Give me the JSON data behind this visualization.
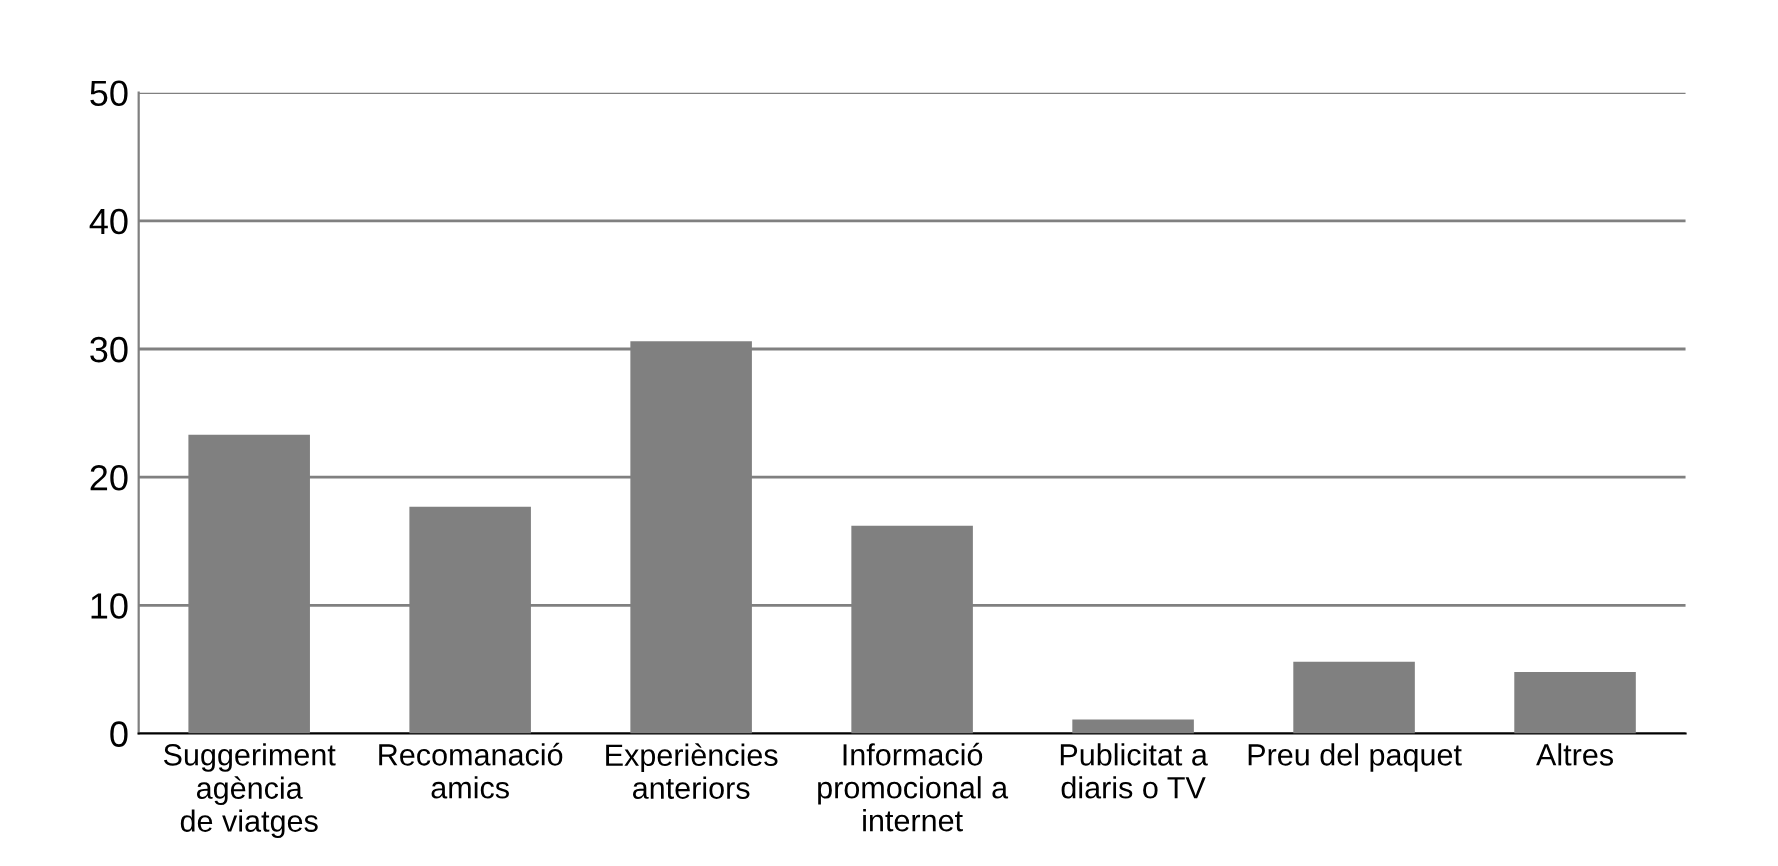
{
  "chart_data": {
    "type": "bar",
    "categories": [
      "Suggeriment\nagència\nde viatges",
      "Recomanació\namics",
      "Experiències\nanteriors",
      "Informació\npromocional a\ninternet",
      "Publicitat a\ndiaris o TV",
      "Preu del paquet",
      "Altres"
    ],
    "values": [
      23.3,
      17.7,
      30.6,
      16.2,
      1.1,
      5.6,
      4.8
    ],
    "color": "#808080",
    "ylim": [
      0,
      50
    ],
    "yticks": [
      0,
      10,
      20,
      30,
      40,
      50
    ],
    "grid": "y"
  }
}
